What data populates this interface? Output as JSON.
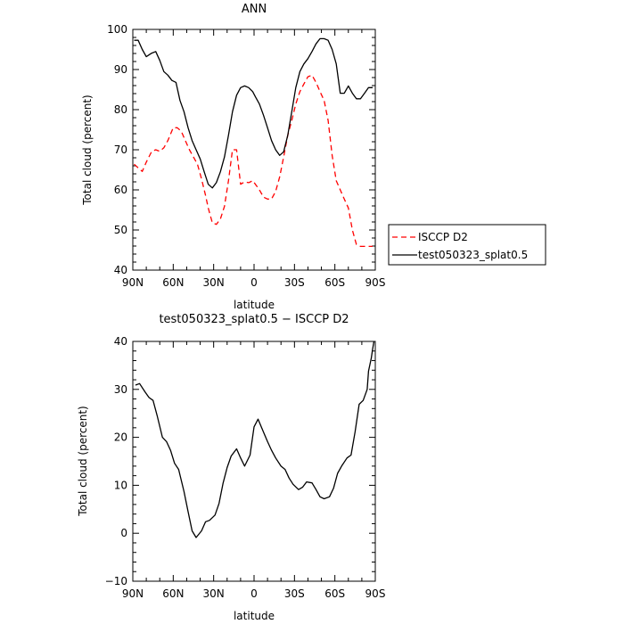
{
  "chart_data": [
    {
      "type": "line",
      "title": "ANN",
      "xlabel": "latitude",
      "ylabel": "Total cloud (percent)",
      "xlim": [
        90,
        -90
      ],
      "ylim": [
        40,
        100
      ],
      "x_ticks": [
        90,
        60,
        30,
        0,
        -30,
        -60,
        -90
      ],
      "x_tick_labels": [
        "90N",
        "60N",
        "30N",
        "0",
        "30S",
        "60S",
        "90S"
      ],
      "y_ticks": [
        40,
        50,
        60,
        70,
        80,
        90,
        100
      ],
      "y_tick_labels": [
        "40",
        "50",
        "60",
        "70",
        "80",
        "90",
        "100"
      ],
      "grid": false,
      "legend_position": "right",
      "series": [
        {
          "name": "ISCCP D2",
          "color": "#ff0000",
          "dash": "dashed",
          "x": [
            89,
            86,
            83,
            80,
            76,
            73,
            70,
            67,
            64,
            60,
            57,
            54,
            51,
            48,
            45,
            42,
            39,
            36,
            34,
            31,
            28,
            25,
            22,
            19,
            16,
            13,
            10,
            7,
            4,
            1,
            -1,
            -4,
            -7,
            -10,
            -13,
            -16,
            -19,
            -22,
            -25,
            -28,
            -31,
            -34,
            -37,
            -40,
            -43,
            -46,
            -49,
            -52,
            -55,
            -58,
            -61,
            -64,
            -67,
            -70,
            -73,
            -76,
            -79,
            -82,
            -85,
            -88
          ],
          "y": [
            66.4,
            65.5,
            64.6,
            66.9,
            69.6,
            70.0,
            69.6,
            70.5,
            72.3,
            75.5,
            75.5,
            74.6,
            72.3,
            70.0,
            68.2,
            66.4,
            62.7,
            58.6,
            55.5,
            51.8,
            51.4,
            52.7,
            55.9,
            62.3,
            70.0,
            70.0,
            61.4,
            62.0,
            61.8,
            62.3,
            61.4,
            60.0,
            58.2,
            57.7,
            57.7,
            59.6,
            63.2,
            68.2,
            73.6,
            77.3,
            81.4,
            84.5,
            86.4,
            88.2,
            88.6,
            86.8,
            84.5,
            82.3,
            77.3,
            68.6,
            62.3,
            60.0,
            57.7,
            55.5,
            50.0,
            46.4,
            45.9,
            45.9,
            45.9,
            45.9
          ]
        },
        {
          "name": "test050323_splat0.5",
          "color": "#000000",
          "dash": "solid",
          "x": [
            89,
            86,
            83,
            80,
            76,
            73,
            70,
            67,
            64,
            61,
            58,
            55,
            52,
            49,
            46,
            43,
            40,
            37,
            34,
            31,
            28,
            25,
            22,
            19,
            16,
            13,
            10,
            7,
            4,
            1,
            -1,
            -4,
            -7,
            -10,
            -13,
            -16,
            -19,
            -22,
            -25,
            -28,
            -31,
            -34,
            -37,
            -40,
            -43,
            -46,
            -49,
            -52,
            -55,
            -58,
            -61,
            -64,
            -67,
            -70,
            -73,
            -76,
            -79,
            -82,
            -85,
            -88
          ],
          "y": [
            97.3,
            97.3,
            95.0,
            93.2,
            94.1,
            94.5,
            92.3,
            89.5,
            88.6,
            87.3,
            86.8,
            82.3,
            79.5,
            75.5,
            72.3,
            70.0,
            67.7,
            64.5,
            61.4,
            60.5,
            61.8,
            64.5,
            68.2,
            73.6,
            79.5,
            83.6,
            85.5,
            85.9,
            85.5,
            84.5,
            83.2,
            81.4,
            78.6,
            75.5,
            72.3,
            70.0,
            68.6,
            69.5,
            73.6,
            79.5,
            85.5,
            89.5,
            91.4,
            92.7,
            94.5,
            96.4,
            97.7,
            97.7,
            97.3,
            95.0,
            91.4,
            84.1,
            84.1,
            85.9,
            84.1,
            82.7,
            82.7,
            84.1,
            85.5,
            85.5
          ]
        }
      ]
    },
    {
      "type": "line",
      "title": "test050323_splat0.5 − ISCCP D2",
      "xlabel": "latitude",
      "ylabel": "Total cloud (percent)",
      "xlim": [
        90,
        -90
      ],
      "ylim": [
        -10,
        40
      ],
      "x_ticks": [
        90,
        60,
        30,
        0,
        -30,
        -60,
        -90
      ],
      "x_tick_labels": [
        "90N",
        "60N",
        "30N",
        "0",
        "30S",
        "60S",
        "90S"
      ],
      "y_ticks": [
        -10,
        0,
        10,
        20,
        30,
        40
      ],
      "y_tick_labels": [
        "−10",
        "0",
        "10",
        "20",
        "30",
        "40"
      ],
      "grid": false,
      "series": [
        {
          "color": "#000000",
          "dash": "solid",
          "x": [
            88,
            85,
            81,
            78,
            75,
            72,
            68,
            65,
            62,
            59,
            56,
            52,
            49,
            46,
            43,
            39,
            36,
            33,
            29,
            26,
            23,
            20,
            17,
            13,
            10,
            7,
            3,
            0,
            -3,
            -7,
            -10,
            -13,
            -16,
            -20,
            -23,
            -26,
            -29,
            -33,
            -36,
            -39,
            -43,
            -46,
            -49,
            -52,
            -56,
            -59,
            -62,
            -65,
            -69,
            -72,
            -75,
            -78,
            -81,
            -84,
            -85,
            -87,
            -88,
            -89
          ],
          "y": [
            30.9,
            31.2,
            29.5,
            28.3,
            27.7,
            24.6,
            20.0,
            19.1,
            17.3,
            14.6,
            13.3,
            8.7,
            4.5,
            0.5,
            -0.9,
            0.5,
            2.4,
            2.7,
            3.8,
            6.2,
            10.4,
            13.7,
            16.1,
            17.6,
            15.7,
            14.0,
            16.3,
            22.2,
            23.8,
            21.1,
            19.1,
            17.3,
            15.7,
            14.0,
            13.3,
            11.5,
            10.2,
            9.1,
            9.6,
            10.7,
            10.5,
            9.1,
            7.6,
            7.2,
            7.6,
            9.4,
            12.5,
            14.0,
            15.7,
            16.3,
            21.1,
            26.9,
            27.7,
            30.0,
            33.8,
            36.5,
            38.4,
            40.0
          ]
        }
      ]
    }
  ]
}
